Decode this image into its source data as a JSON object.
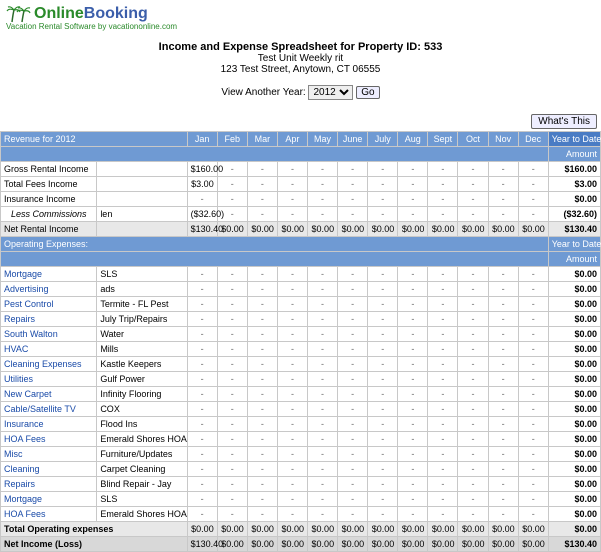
{
  "logo": {
    "online": "Online",
    "booking": "Booking",
    "tagline": "Vacation Rental Software by vacationonline.com"
  },
  "header": {
    "title": "Income and Expense Spreadsheet for Property ID: 533",
    "unit": "Test Unit Weekly rit",
    "addr": "123 Test Street, Anytown, CT 06555"
  },
  "yearsel": {
    "label": "View Another Year:",
    "year": "2012",
    "go": "Go"
  },
  "whats": "What's This",
  "months": [
    "Jan",
    "Feb",
    "Mar",
    "Apr",
    "May",
    "June",
    "July",
    "Aug",
    "Sept",
    "Oct",
    "Nov",
    "Dec"
  ],
  "ytd_label": "Year to Date",
  "amount_label": "Amount",
  "revenue": {
    "title": "Revenue for 2012",
    "rows": [
      {
        "a": "Gross Rental Income",
        "b": "",
        "jan": "$160.00",
        "ytd": "$160.00"
      },
      {
        "a": "Total Fees Income",
        "b": "",
        "jan": "$3.00",
        "ytd": "$3.00"
      },
      {
        "a": "Insurance Income",
        "b": "",
        "jan": "",
        "ytd": "$0.00"
      },
      {
        "a": "  Less Commissions",
        "b": "len",
        "jan": "($32.60)",
        "ytd": "($32.60)",
        "italic": true
      }
    ],
    "net": {
      "label": "Net Rental Income",
      "jan": "$130.40",
      "rest": "$0.00",
      "ytd": "$130.40"
    }
  },
  "expenses": {
    "title": "Operating Expenses:",
    "rows": [
      {
        "a": "Mortgage",
        "b": "SLS"
      },
      {
        "a": "Advertising",
        "b": "ads"
      },
      {
        "a": "Pest Control",
        "b": "Termite - FL Pest"
      },
      {
        "a": "Repairs",
        "b": "July Trip/Repairs"
      },
      {
        "a": "South Walton",
        "b": "Water"
      },
      {
        "a": "HVAC",
        "b": "Mills"
      },
      {
        "a": "Cleaning Expenses",
        "b": "Kastle Keepers"
      },
      {
        "a": "Utilities",
        "b": "Gulf Power"
      },
      {
        "a": "New Carpet",
        "b": "Infinity Flooring"
      },
      {
        "a": "Cable/Satellite TV",
        "b": "COX"
      },
      {
        "a": "Insurance",
        "b": "Flood Ins"
      },
      {
        "a": "HOA Fees",
        "b": "Emerald Shores HOA"
      },
      {
        "a": "Misc",
        "b": "Furniture/Updates"
      },
      {
        "a": "Cleaning",
        "b": "Carpet Cleaning"
      },
      {
        "a": "Repairs",
        "b": "Blind Repair - Jay"
      },
      {
        "a": "Mortgage",
        "b": "SLS"
      },
      {
        "a": "HOA Fees",
        "b": "Emerald Shores HOA"
      }
    ],
    "total": {
      "label": "Total Operating expenses",
      "val": "$0.00",
      "ytd": "$0.00"
    },
    "net": {
      "label": "Net Income (Loss)",
      "jan": "$130.40",
      "rest": "$0.00",
      "ytd": "$130.40"
    }
  }
}
